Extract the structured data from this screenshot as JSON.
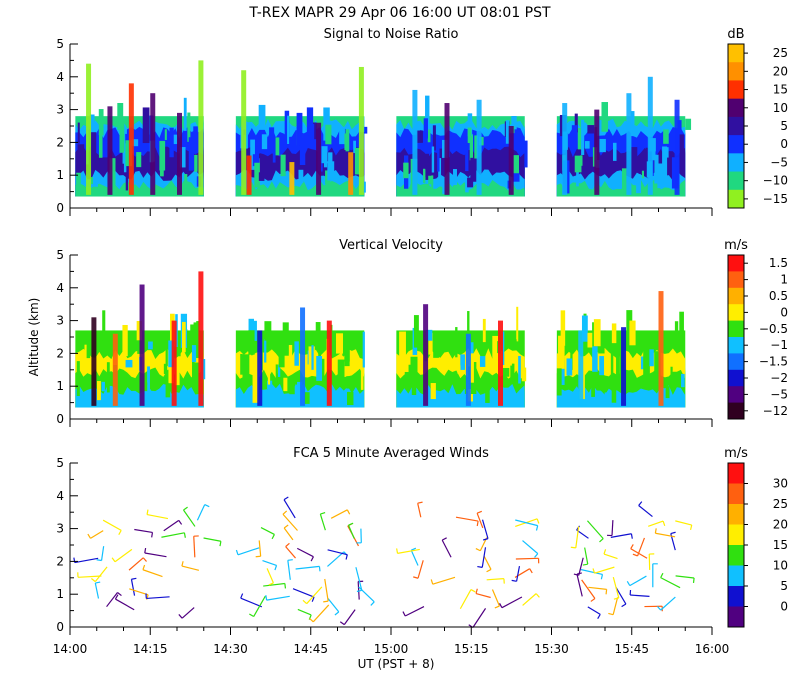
{
  "chart_data": {
    "type": "heatmap",
    "title": "T-REX  MAPR 29 Apr 06  16:00 UT  08:01  PST",
    "xlabel": "UT  (PST + 8)",
    "x_ticks": [
      "14:00",
      "14:15",
      "14:30",
      "14:45",
      "15:00",
      "15:15",
      "15:30",
      "15:45",
      "16:00"
    ],
    "x_range_minutes": [
      0,
      120
    ],
    "panels": [
      {
        "id": "snr",
        "title": "Signal to Noise Ratio",
        "ylabel": "",
        "ylim": [
          0,
          5
        ],
        "y_ticks": [
          "0",
          "1",
          "2",
          "3",
          "4",
          "5"
        ],
        "unit": "dB",
        "colorbar_labels": [
          "25",
          "20",
          "15",
          "10",
          "5",
          "0",
          "−5",
          "−10",
          "−15"
        ],
        "colors": [
          "#ffc000",
          "#ff9000",
          "#ff3000",
          "#500070",
          "#3010a0",
          "#1030ff",
          "#10b0ff",
          "#20d880",
          "#90f020"
        ],
        "segments_min": [
          [
            1,
            25
          ],
          [
            31,
            55
          ],
          [
            61,
            85
          ],
          [
            91,
            115
          ]
        ],
        "layers_km": [
          {
            "top": 2.8,
            "c": 7
          },
          {
            "top": 2.55,
            "c": 6
          },
          {
            "top": 2.3,
            "c": 5
          },
          {
            "top": 1.7,
            "c": 4
          },
          {
            "top": 1.0,
            "c": 6
          },
          {
            "top": 0.7,
            "c": 7
          }
        ],
        "columns": [
          {
            "x": 3,
            "top": 4.4,
            "c": 8
          },
          {
            "x": 7,
            "top": 3.1,
            "c": 3
          },
          {
            "x": 11,
            "top": 3.8,
            "c": 2
          },
          {
            "x": 15,
            "top": 3.5,
            "c": 3
          },
          {
            "x": 20,
            "top": 2.9,
            "c": 3
          },
          {
            "x": 24,
            "top": 4.5,
            "c": 8
          },
          {
            "x": 32,
            "top": 4.2,
            "c": 8
          },
          {
            "x": 33,
            "top": 1.6,
            "c": 2
          },
          {
            "x": 41,
            "top": 1.4,
            "c": 0
          },
          {
            "x": 46,
            "top": 2.6,
            "c": 3
          },
          {
            "x": 54,
            "top": 4.3,
            "c": 8
          },
          {
            "x": 52,
            "top": 1.7,
            "c": 1
          },
          {
            "x": 64,
            "top": 3.6,
            "c": 6
          },
          {
            "x": 70,
            "top": 3.2,
            "c": 3
          },
          {
            "x": 76,
            "top": 3.3,
            "c": 6
          },
          {
            "x": 82,
            "top": 2.5,
            "c": 3
          },
          {
            "x": 92,
            "top": 3.2,
            "c": 6
          },
          {
            "x": 98,
            "top": 3.0,
            "c": 3
          },
          {
            "x": 104,
            "top": 3.5,
            "c": 6
          },
          {
            "x": 108,
            "top": 4.0,
            "c": 6
          },
          {
            "x": 113,
            "top": 3.3,
            "c": 5
          }
        ]
      },
      {
        "id": "vv",
        "title": "Vertical Velocity",
        "ylabel": "Altitude  (km)",
        "ylim": [
          0,
          5
        ],
        "y_ticks": [
          "0",
          "1",
          "2",
          "3",
          "4",
          "5"
        ],
        "unit": "m/s",
        "colorbar_labels": [
          "1.5",
          "1",
          "0.5",
          "0",
          "−0.5",
          "−1",
          "−1.5",
          "−2",
          "−5",
          "−12"
        ],
        "colors": [
          "#ff1010",
          "#ff6010",
          "#ffb000",
          "#ffee00",
          "#30e010",
          "#10c0ff",
          "#1070ff",
          "#1010d0",
          "#500080",
          "#300020"
        ],
        "segments_min": [
          [
            1,
            25
          ],
          [
            31,
            55
          ],
          [
            61,
            85
          ],
          [
            91,
            115
          ]
        ],
        "layers_km": [
          {
            "top": 2.7,
            "c": 4
          },
          {
            "top": 2.0,
            "c": 3
          },
          {
            "top": 1.4,
            "c": 4
          },
          {
            "top": 0.9,
            "c": 5
          }
        ],
        "columns": [
          {
            "x": 4,
            "top": 3.1,
            "c": 9
          },
          {
            "x": 8,
            "top": 2.6,
            "c": 1
          },
          {
            "x": 13,
            "top": 4.1,
            "c": 8
          },
          {
            "x": 19,
            "top": 3.0,
            "c": 0
          },
          {
            "x": 24,
            "top": 4.5,
            "c": 0
          },
          {
            "x": 35,
            "top": 2.7,
            "c": 7
          },
          {
            "x": 43,
            "top": 3.4,
            "c": 6
          },
          {
            "x": 48,
            "top": 3.0,
            "c": 0
          },
          {
            "x": 66,
            "top": 3.5,
            "c": 8
          },
          {
            "x": 74,
            "top": 2.6,
            "c": 6
          },
          {
            "x": 80,
            "top": 3.0,
            "c": 0
          },
          {
            "x": 95,
            "top": 2.7,
            "c": 5
          },
          {
            "x": 103,
            "top": 2.8,
            "c": 7
          },
          {
            "x": 110,
            "top": 3.9,
            "c": 1
          }
        ]
      },
      {
        "id": "winds",
        "title": "FCA 5 Minute Averaged Winds",
        "ylabel": "",
        "ylim": [
          0,
          5
        ],
        "y_ticks": [
          "0",
          "1",
          "2",
          "3",
          "4",
          "5"
        ],
        "unit": "m/s",
        "colorbar_labels": [
          "30",
          "25",
          "20",
          "15",
          "10",
          "5",
          "0"
        ],
        "colors": [
          "#ff1010",
          "#ff6010",
          "#ffb000",
          "#ffee00",
          "#30e010",
          "#10c0ff",
          "#1010d0",
          "#500080"
        ],
        "barb_times_min": [
          6,
          12,
          18,
          24,
          36,
          42,
          48,
          54,
          66,
          72,
          78,
          84,
          96,
          102,
          108,
          114
        ],
        "barb_heights_km": [
          0.6,
          0.9,
          1.2,
          1.5,
          1.8,
          2.1,
          2.4,
          2.7,
          3.0,
          3.3
        ]
      }
    ]
  }
}
